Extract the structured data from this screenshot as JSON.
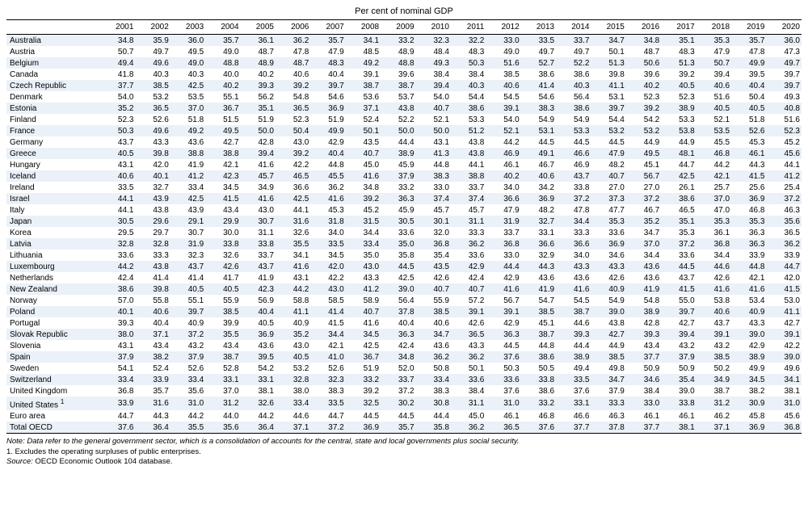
{
  "title": "Per cent of nominal GDP",
  "years": [
    "2001",
    "2002",
    "2003",
    "2004",
    "2005",
    "2006",
    "2007",
    "2008",
    "2009",
    "2010",
    "2011",
    "2012",
    "2013",
    "2014",
    "2015",
    "2016",
    "2017",
    "2018",
    "2019",
    "2020"
  ],
  "rows": [
    {
      "country": "Australia",
      "sup": "",
      "v": [
        "34.8",
        "35.9",
        "36.0",
        "35.7",
        "36.1",
        "36.2",
        "35.7",
        "34.1",
        "33.2",
        "32.3",
        "32.2",
        "33.0",
        "33.5",
        "33.7",
        "34.7",
        "34.8",
        "35.1",
        "35.3",
        "35.7",
        "36.0"
      ]
    },
    {
      "country": "Austria",
      "sup": "",
      "v": [
        "50.7",
        "49.7",
        "49.5",
        "49.0",
        "48.7",
        "47.8",
        "47.9",
        "48.5",
        "48.9",
        "48.4",
        "48.3",
        "49.0",
        "49.7",
        "49.7",
        "50.1",
        "48.7",
        "48.3",
        "47.9",
        "47.8",
        "47.3"
      ]
    },
    {
      "country": "Belgium",
      "sup": "",
      "v": [
        "49.4",
        "49.6",
        "49.0",
        "48.8",
        "48.9",
        "48.7",
        "48.3",
        "49.2",
        "48.8",
        "49.3",
        "50.3",
        "51.6",
        "52.7",
        "52.2",
        "51.3",
        "50.6",
        "51.3",
        "50.7",
        "49.9",
        "49.7"
      ]
    },
    {
      "country": "Canada",
      "sup": "",
      "v": [
        "41.8",
        "40.3",
        "40.3",
        "40.0",
        "40.2",
        "40.6",
        "40.4",
        "39.1",
        "39.6",
        "38.4",
        "38.4",
        "38.5",
        "38.6",
        "38.6",
        "39.8",
        "39.6",
        "39.2",
        "39.4",
        "39.5",
        "39.7"
      ]
    },
    {
      "country": "Czech Republic",
      "sup": "",
      "v": [
        "37.7",
        "38.5",
        "42.5",
        "40.2",
        "39.3",
        "39.2",
        "39.7",
        "38.7",
        "38.7",
        "39.4",
        "40.3",
        "40.6",
        "41.4",
        "40.3",
        "41.1",
        "40.2",
        "40.5",
        "40.6",
        "40.4",
        "39.7"
      ]
    },
    {
      "country": "Denmark",
      "sup": "",
      "v": [
        "54.0",
        "53.2",
        "53.5",
        "55.1",
        "56.2",
        "54.8",
        "54.6",
        "53.6",
        "53.7",
        "54.0",
        "54.4",
        "54.5",
        "54.6",
        "56.4",
        "53.1",
        "52.3",
        "52.3",
        "51.6",
        "50.4",
        "49.3"
      ]
    },
    {
      "country": "Estonia",
      "sup": "",
      "v": [
        "35.2",
        "36.5",
        "37.0",
        "36.7",
        "35.1",
        "36.5",
        "36.9",
        "37.1",
        "43.8",
        "40.7",
        "38.6",
        "39.1",
        "38.3",
        "38.6",
        "39.7",
        "39.2",
        "38.9",
        "40.5",
        "40.5",
        "40.8"
      ]
    },
    {
      "country": "Finland",
      "sup": "",
      "v": [
        "52.3",
        "52.6",
        "51.8",
        "51.5",
        "51.9",
        "52.3",
        "51.9",
        "52.4",
        "52.2",
        "52.1",
        "53.3",
        "54.0",
        "54.9",
        "54.9",
        "54.4",
        "54.2",
        "53.3",
        "52.1",
        "51.8",
        "51.6"
      ]
    },
    {
      "country": "France",
      "sup": "",
      "v": [
        "50.3",
        "49.6",
        "49.2",
        "49.5",
        "50.0",
        "50.4",
        "49.9",
        "50.1",
        "50.0",
        "50.0",
        "51.2",
        "52.1",
        "53.1",
        "53.3",
        "53.2",
        "53.2",
        "53.8",
        "53.5",
        "52.6",
        "52.3"
      ]
    },
    {
      "country": "Germany",
      "sup": "",
      "v": [
        "43.7",
        "43.3",
        "43.6",
        "42.7",
        "42.8",
        "43.0",
        "42.9",
        "43.5",
        "44.4",
        "43.1",
        "43.8",
        "44.2",
        "44.5",
        "44.5",
        "44.5",
        "44.9",
        "44.9",
        "45.5",
        "45.3",
        "45.2"
      ]
    },
    {
      "country": "Greece",
      "sup": "",
      "v": [
        "40.5",
        "39.8",
        "38.8",
        "38.8",
        "39.4",
        "39.2",
        "40.4",
        "40.7",
        "38.9",
        "41.3",
        "43.8",
        "46.9",
        "49.1",
        "46.6",
        "47.9",
        "49.5",
        "48.1",
        "46.8",
        "46.1",
        "45.6"
      ]
    },
    {
      "country": "Hungary",
      "sup": "",
      "v": [
        "43.1",
        "42.0",
        "41.9",
        "42.1",
        "41.6",
        "42.2",
        "44.8",
        "45.0",
        "45.9",
        "44.8",
        "44.1",
        "46.1",
        "46.7",
        "46.9",
        "48.2",
        "45.1",
        "44.7",
        "44.2",
        "44.3",
        "44.1"
      ]
    },
    {
      "country": "Iceland",
      "sup": "",
      "v": [
        "40.6",
        "40.1",
        "41.2",
        "42.3",
        "45.7",
        "46.5",
        "45.5",
        "41.6",
        "37.9",
        "38.3",
        "38.8",
        "40.2",
        "40.6",
        "43.7",
        "40.7",
        "56.7",
        "42.5",
        "42.1",
        "41.5",
        "41.2"
      ]
    },
    {
      "country": "Ireland",
      "sup": "",
      "v": [
        "33.5",
        "32.7",
        "33.4",
        "34.5",
        "34.9",
        "36.6",
        "36.2",
        "34.8",
        "33.2",
        "33.0",
        "33.7",
        "34.0",
        "34.2",
        "33.8",
        "27.0",
        "27.0",
        "26.1",
        "25.7",
        "25.6",
        "25.4"
      ]
    },
    {
      "country": "Israel",
      "sup": "",
      "v": [
        "44.1",
        "43.9",
        "42.5",
        "41.5",
        "41.6",
        "42.5",
        "41.6",
        "39.2",
        "36.3",
        "37.4",
        "37.4",
        "36.6",
        "36.9",
        "37.2",
        "37.3",
        "37.2",
        "38.6",
        "37.0",
        "36.9",
        "37.2"
      ]
    },
    {
      "country": "Italy",
      "sup": "",
      "v": [
        "44.1",
        "43.8",
        "43.9",
        "43.4",
        "43.0",
        "44.1",
        "45.3",
        "45.2",
        "45.9",
        "45.7",
        "45.7",
        "47.9",
        "48.2",
        "47.8",
        "47.7",
        "46.7",
        "46.5",
        "47.0",
        "46.8",
        "46.3"
      ]
    },
    {
      "country": "Japan",
      "sup": "",
      "v": [
        "30.5",
        "29.6",
        "29.1",
        "29.9",
        "30.7",
        "31.6",
        "31.8",
        "31.5",
        "30.5",
        "30.1",
        "31.1",
        "31.9",
        "32.7",
        "34.4",
        "35.3",
        "35.2",
        "35.1",
        "35.3",
        "35.3",
        "35.6"
      ]
    },
    {
      "country": "Korea",
      "sup": "",
      "v": [
        "29.5",
        "29.7",
        "30.7",
        "30.0",
        "31.1",
        "32.6",
        "34.0",
        "34.4",
        "33.6",
        "32.0",
        "33.3",
        "33.7",
        "33.1",
        "33.3",
        "33.6",
        "34.7",
        "35.3",
        "36.1",
        "36.3",
        "36.5"
      ]
    },
    {
      "country": "Latvia",
      "sup": "",
      "v": [
        "32.8",
        "32.8",
        "31.9",
        "33.8",
        "33.8",
        "35.5",
        "33.5",
        "33.4",
        "35.0",
        "36.8",
        "36.2",
        "36.8",
        "36.6",
        "36.6",
        "36.9",
        "37.0",
        "37.2",
        "36.8",
        "36.3",
        "36.2"
      ]
    },
    {
      "country": "Lithuania",
      "sup": "",
      "v": [
        "33.6",
        "33.3",
        "32.3",
        "32.6",
        "33.7",
        "34.1",
        "34.5",
        "35.0",
        "35.8",
        "35.4",
        "33.6",
        "33.0",
        "32.9",
        "34.0",
        "34.6",
        "34.4",
        "33.6",
        "34.4",
        "33.9",
        "33.9"
      ]
    },
    {
      "country": "Luxembourg",
      "sup": "",
      "v": [
        "44.2",
        "43.8",
        "43.7",
        "42.6",
        "43.7",
        "41.6",
        "42.0",
        "43.0",
        "44.5",
        "43.5",
        "42.9",
        "44.4",
        "44.3",
        "43.3",
        "43.3",
        "43.6",
        "44.5",
        "44.6",
        "44.8",
        "44.7"
      ]
    },
    {
      "country": "Netherlands",
      "sup": "",
      "v": [
        "42.4",
        "41.4",
        "41.4",
        "41.7",
        "41.9",
        "43.1",
        "42.2",
        "43.3",
        "42.5",
        "42.6",
        "42.4",
        "42.9",
        "43.6",
        "43.6",
        "42.6",
        "43.6",
        "43.7",
        "42.6",
        "42.1",
        "42.0"
      ]
    },
    {
      "country": "New Zealand",
      "sup": "",
      "v": [
        "38.6",
        "39.8",
        "40.5",
        "40.5",
        "42.3",
        "44.2",
        "43.0",
        "41.2",
        "39.0",
        "40.7",
        "40.7",
        "41.6",
        "41.9",
        "41.6",
        "40.9",
        "41.9",
        "41.5",
        "41.6",
        "41.6",
        "41.5"
      ]
    },
    {
      "country": "Norway",
      "sup": "",
      "v": [
        "57.0",
        "55.8",
        "55.1",
        "55.9",
        "56.9",
        "58.8",
        "58.5",
        "58.9",
        "56.4",
        "55.9",
        "57.2",
        "56.7",
        "54.7",
        "54.5",
        "54.9",
        "54.8",
        "55.0",
        "53.8",
        "53.4",
        "53.0"
      ]
    },
    {
      "country": "Poland",
      "sup": "",
      "v": [
        "40.1",
        "40.6",
        "39.7",
        "38.5",
        "40.4",
        "41.1",
        "41.4",
        "40.7",
        "37.8",
        "38.5",
        "39.1",
        "39.1",
        "38.5",
        "38.7",
        "39.0",
        "38.9",
        "39.7",
        "40.6",
        "40.9",
        "41.1"
      ]
    },
    {
      "country": "Portugal",
      "sup": "",
      "v": [
        "39.3",
        "40.4",
        "40.9",
        "39.9",
        "40.5",
        "40.9",
        "41.5",
        "41.6",
        "40.4",
        "40.6",
        "42.6",
        "42.9",
        "45.1",
        "44.6",
        "43.8",
        "42.8",
        "42.7",
        "43.7",
        "43.3",
        "42.7"
      ]
    },
    {
      "country": "Slovak Republic",
      "sup": "",
      "v": [
        "38.0",
        "37.1",
        "37.2",
        "35.5",
        "36.9",
        "35.2",
        "34.4",
        "34.5",
        "36.3",
        "34.7",
        "36.5",
        "36.3",
        "38.7",
        "39.3",
        "42.7",
        "39.3",
        "39.4",
        "39.1",
        "39.0",
        "39.1"
      ]
    },
    {
      "country": "Slovenia",
      "sup": "",
      "v": [
        "43.1",
        "43.4",
        "43.2",
        "43.4",
        "43.6",
        "43.0",
        "42.1",
        "42.5",
        "42.4",
        "43.6",
        "43.3",
        "44.5",
        "44.8",
        "44.4",
        "44.9",
        "43.4",
        "43.2",
        "43.2",
        "42.9",
        "42.2"
      ]
    },
    {
      "country": "Spain",
      "sup": "",
      "v": [
        "37.9",
        "38.2",
        "37.9",
        "38.7",
        "39.5",
        "40.5",
        "41.0",
        "36.7",
        "34.8",
        "36.2",
        "36.2",
        "37.6",
        "38.6",
        "38.9",
        "38.5",
        "37.7",
        "37.9",
        "38.5",
        "38.9",
        "39.0"
      ]
    },
    {
      "country": "Sweden",
      "sup": "",
      "v": [
        "54.1",
        "52.4",
        "52.6",
        "52.8",
        "54.2",
        "53.2",
        "52.6",
        "51.9",
        "52.0",
        "50.8",
        "50.1",
        "50.3",
        "50.5",
        "49.4",
        "49.8",
        "50.9",
        "50.9",
        "50.2",
        "49.9",
        "49.6"
      ]
    },
    {
      "country": "Switzerland",
      "sup": "",
      "v": [
        "33.4",
        "33.9",
        "33.4",
        "33.1",
        "33.1",
        "32.8",
        "32.3",
        "33.2",
        "33.7",
        "33.4",
        "33.6",
        "33.6",
        "33.8",
        "33.5",
        "34.7",
        "34.6",
        "35.4",
        "34.9",
        "34.5",
        "34.1"
      ]
    },
    {
      "country": "United Kingdom",
      "sup": "",
      "v": [
        "36.8",
        "35.7",
        "35.6",
        "37.0",
        "38.1",
        "38.0",
        "38.3",
        "39.2",
        "37.2",
        "38.3",
        "38.4",
        "37.6",
        "38.6",
        "37.6",
        "37.9",
        "38.4",
        "39.0",
        "38.7",
        "38.2",
        "38.1"
      ]
    },
    {
      "country": "United States",
      "sup": "1",
      "v": [
        "33.9",
        "31.6",
        "31.0",
        "31.2",
        "32.6",
        "33.4",
        "33.5",
        "32.5",
        "30.2",
        "30.8",
        "31.1",
        "31.0",
        "33.2",
        "33.1",
        "33.3",
        "33.0",
        "33.8",
        "31.2",
        "30.9",
        "31.0"
      ]
    },
    {
      "country": "Euro area",
      "sup": "",
      "v": [
        "44.7",
        "44.3",
        "44.2",
        "44.0",
        "44.2",
        "44.6",
        "44.7",
        "44.5",
        "44.5",
        "44.4",
        "45.0",
        "46.1",
        "46.8",
        "46.6",
        "46.3",
        "46.1",
        "46.1",
        "46.2",
        "45.8",
        "45.6"
      ]
    },
    {
      "country": "Total OECD",
      "sup": "",
      "v": [
        "37.6",
        "36.4",
        "35.5",
        "35.6",
        "36.4",
        "37.1",
        "37.2",
        "36.9",
        "35.7",
        "35.8",
        "36.2",
        "36.5",
        "37.6",
        "37.7",
        "37.8",
        "37.7",
        "38.1",
        "37.1",
        "36.9",
        "36.8"
      ]
    }
  ],
  "notes": {
    "note": "Note: Data refer to the general government sector, which is a consolidation of accounts for the central, state and local governments plus social security.",
    "footnote1": "1.  Excludes the operating surpluses of public enterprises.",
    "source_label": "Source:",
    "source_text": "OECD Economic Outlook 104 database."
  },
  "colors": {
    "row_even_bg": "#eaf1f8",
    "text": "#000000",
    "border": "#000000"
  }
}
